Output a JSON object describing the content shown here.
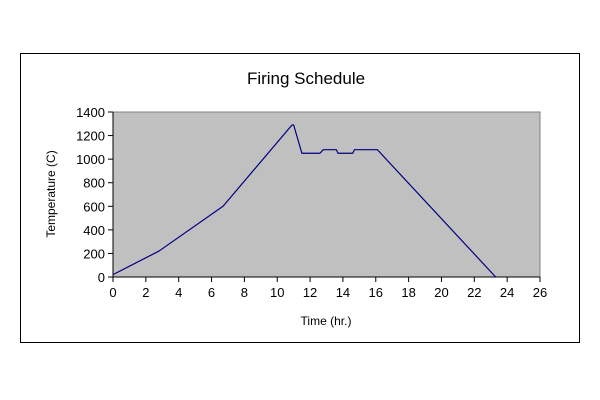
{
  "chart_data": {
    "type": "line",
    "title": "Firing Schedule",
    "xlabel": "Time (hr.)",
    "ylabel": "Temperature (C)",
    "xlim": [
      0,
      26
    ],
    "ylim": [
      0,
      1400
    ],
    "xticks": [
      0,
      2,
      4,
      6,
      8,
      10,
      12,
      14,
      16,
      18,
      20,
      22,
      24,
      26
    ],
    "yticks": [
      0,
      200,
      400,
      600,
      800,
      1000,
      1200,
      1400
    ],
    "grid": false,
    "legend": "none",
    "plot_background": "#c0c0c0",
    "series": [
      {
        "color": "#000080",
        "points": [
          [
            0,
            20
          ],
          [
            2.8,
            220
          ],
          [
            6.7,
            600
          ],
          [
            10.9,
            1290
          ],
          [
            11.0,
            1290
          ],
          [
            11.5,
            1050
          ],
          [
            12.6,
            1050
          ],
          [
            12.8,
            1080
          ],
          [
            13.6,
            1080
          ],
          [
            13.7,
            1050
          ],
          [
            14.6,
            1050
          ],
          [
            14.7,
            1080
          ],
          [
            16.1,
            1080
          ],
          [
            23.3,
            0
          ]
        ]
      }
    ]
  }
}
